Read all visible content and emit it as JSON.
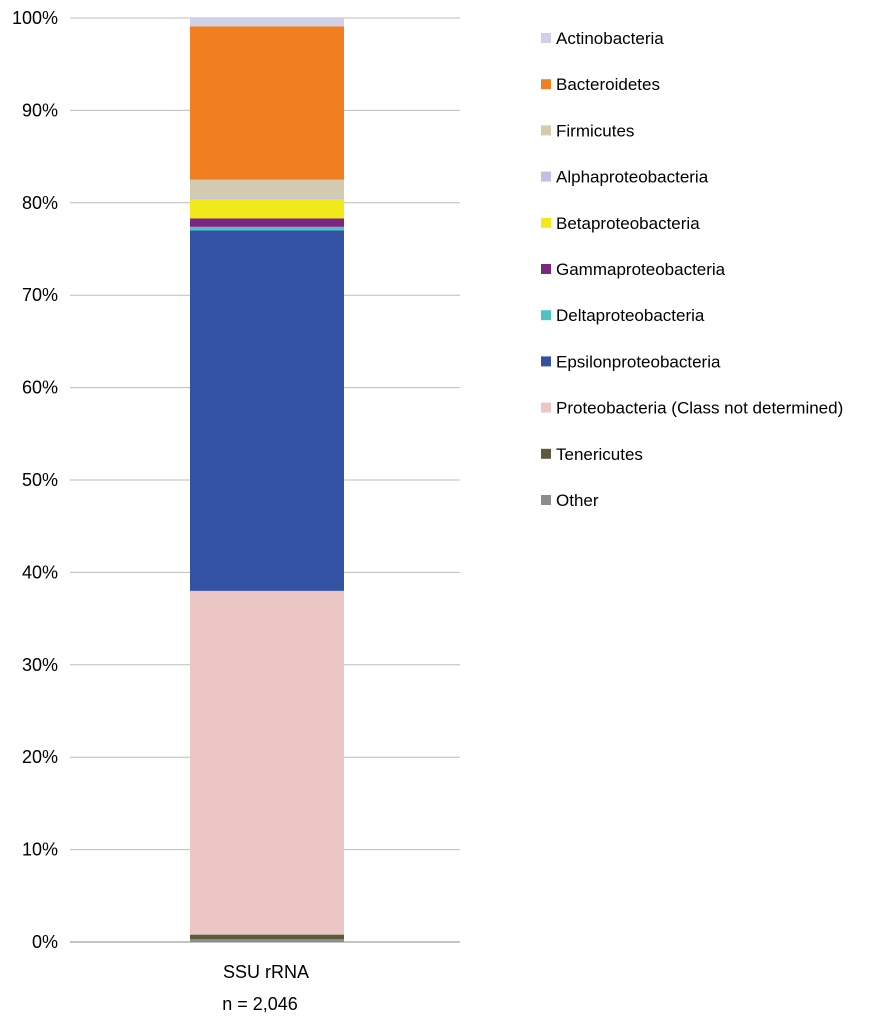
{
  "chart_data": {
    "type": "bar",
    "stacked": true,
    "categories": [
      "SSU rRNA"
    ],
    "category_sublabel": "n = 2,046",
    "ylim": [
      0,
      100
    ],
    "yticks": [
      "0%",
      "10%",
      "20%",
      "30%",
      "40%",
      "50%",
      "60%",
      "70%",
      "80%",
      "90%",
      "100%"
    ],
    "grid": true,
    "legend_position": "right",
    "series": [
      {
        "name": "Other",
        "values": [
          0.3
        ],
        "color": "#8c8c8c"
      },
      {
        "name": "Tenericutes",
        "values": [
          0.5
        ],
        "color": "#5b5a3c"
      },
      {
        "name": "Proteobacteria (Class not determined)",
        "values": [
          37.2
        ],
        "color": "#ecc6c4"
      },
      {
        "name": "Epsilonproteobacteria",
        "values": [
          39.0
        ],
        "color": "#3452a4"
      },
      {
        "name": "Deltaproteobacteria",
        "values": [
          0.4
        ],
        "color": "#4fc2c4"
      },
      {
        "name": "Gammaproteobacteria",
        "values": [
          0.9
        ],
        "color": "#7b2584"
      },
      {
        "name": "Betaproteobacteria",
        "values": [
          2.1
        ],
        "color": "#f1ea1b"
      },
      {
        "name": "Alphaproteobacteria",
        "values": [
          0.2
        ],
        "color": "#c7bde0"
      },
      {
        "name": "Firmicutes",
        "values": [
          1.9
        ],
        "color": "#d2cbb0"
      },
      {
        "name": "Bacteroidetes",
        "values": [
          16.6
        ],
        "color": "#f07f22"
      },
      {
        "name": "Actinobacteria",
        "values": [
          0.9
        ],
        "color": "#d2d0e8"
      }
    ],
    "legend_order": [
      "Actinobacteria",
      "Bacteroidetes",
      "Firmicutes",
      "Alphaproteobacteria",
      "Betaproteobacteria",
      "Gammaproteobacteria",
      "Deltaproteobacteria",
      "Epsilonproteobacteria",
      "Proteobacteria (Class not determined)",
      "Tenericutes",
      "Other"
    ]
  }
}
